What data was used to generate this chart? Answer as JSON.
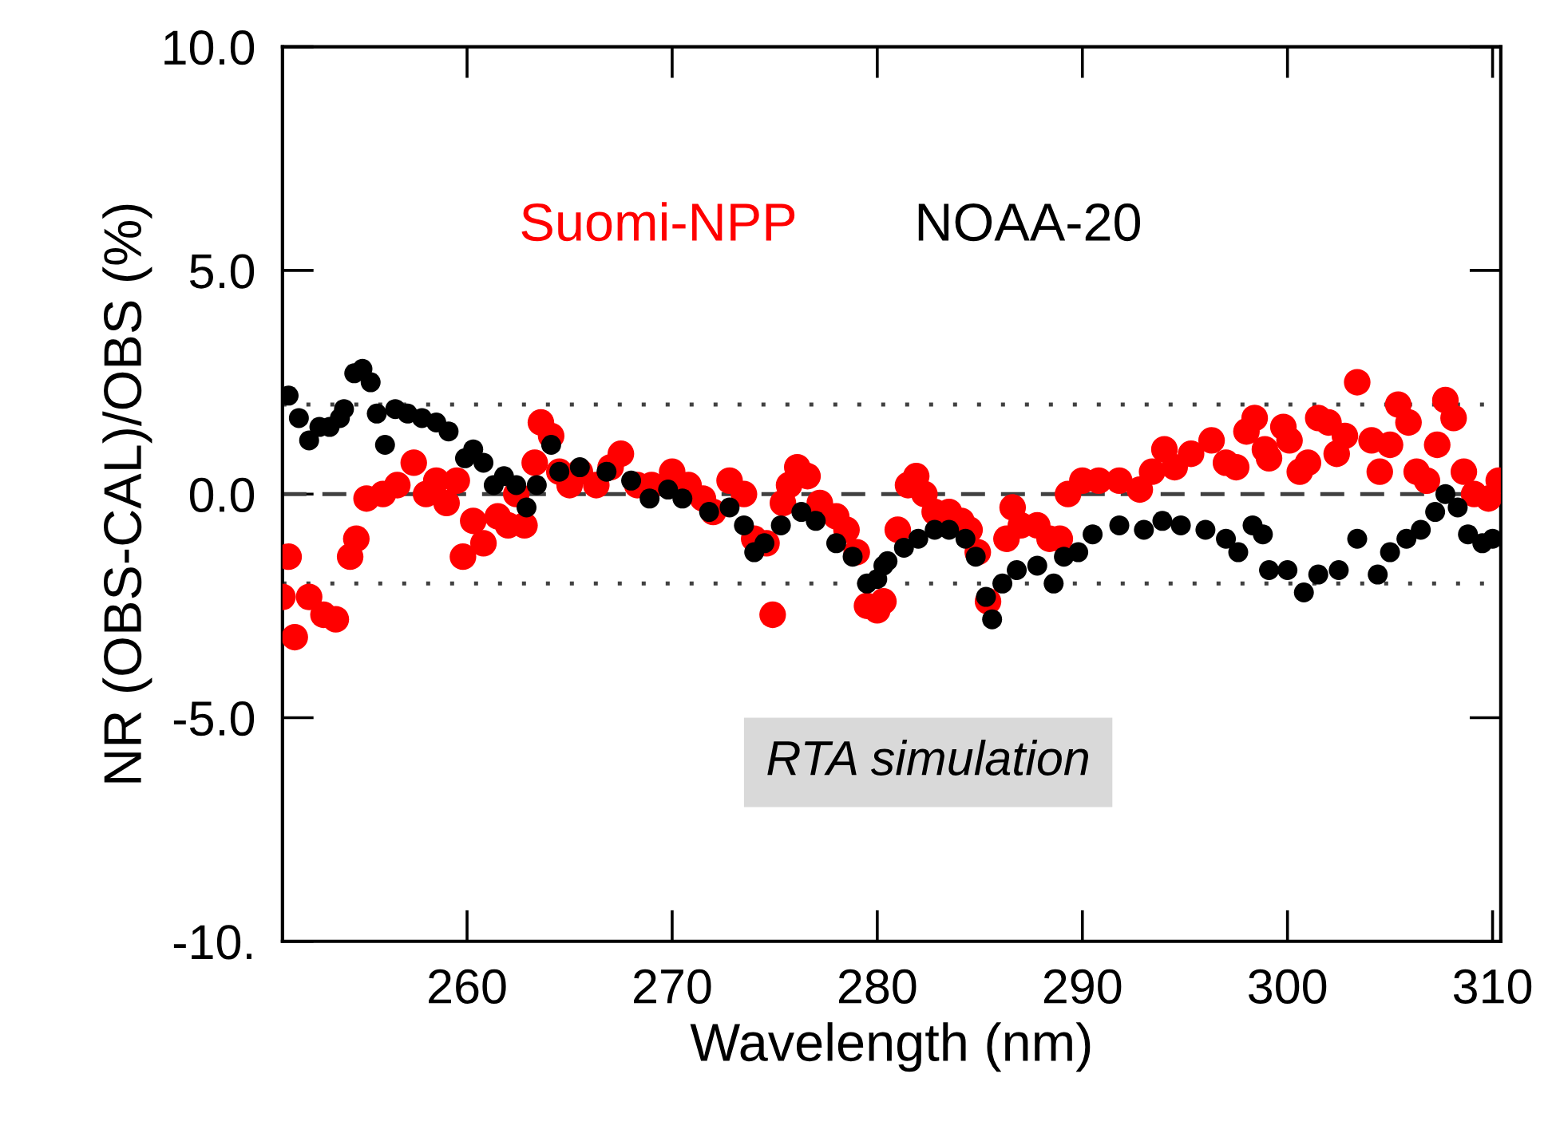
{
  "chart_data": {
    "type": "scatter",
    "xlabel": "Wavelength (nm)",
    "ylabel": "NR (OBS-CAL)/OBS (%)",
    "xlim": [
      251.0,
      310.4
    ],
    "ylim": [
      -10,
      10
    ],
    "xticks": [
      260,
      270,
      280,
      290,
      300,
      310
    ],
    "yticks": [
      {
        "value": -10,
        "label": "-10."
      },
      {
        "value": -5,
        "label": "-5.0"
      },
      {
        "value": 0,
        "label": "0.0"
      },
      {
        "value": 5,
        "label": "5.0"
      },
      {
        "value": 10,
        "label": "10.0"
      }
    ],
    "grid": false,
    "legend": "top",
    "marker": "circle",
    "series": [
      {
        "name": "Suomi-NPP",
        "color": "#ff0000",
        "x": [
          251.0,
          251.3,
          251.6,
          252.3,
          253.0,
          253.6,
          254.3,
          254.6,
          255.1,
          255.9,
          256.6,
          257.4,
          258.0,
          258.5,
          259.0,
          259.5,
          259.8,
          260.3,
          260.8,
          261.5,
          262.0,
          262.4,
          262.8,
          263.3,
          263.6,
          264.1,
          264.5,
          265.0,
          265.5,
          266.3,
          267.0,
          267.5,
          268.3,
          269.0,
          270.0,
          270.8,
          271.5,
          272.0,
          272.8,
          273.5,
          274.0,
          274.6,
          274.9,
          275.4,
          275.7,
          276.1,
          276.6,
          277.2,
          278.0,
          278.5,
          279.0,
          279.5,
          280.0,
          280.3,
          281.0,
          281.5,
          281.9,
          282.3,
          282.8,
          283.5,
          284.1,
          284.5,
          284.9,
          285.4,
          286.3,
          286.6,
          287.0,
          287.8,
          288.4,
          288.9,
          289.3,
          290.0,
          290.8,
          291.8,
          292.8,
          293.4,
          294.0,
          294.5,
          295.3,
          296.3,
          297.0,
          297.5,
          298.0,
          298.4,
          298.9,
          299.1,
          299.8,
          300.1,
          300.6,
          301.0,
          301.5,
          302.0,
          302.4,
          302.8,
          303.4,
          304.1,
          304.5,
          305.0,
          305.4,
          305.9,
          306.3,
          306.8,
          307.3,
          307.7,
          308.1,
          308.6,
          309.1,
          309.8,
          310.3
        ],
        "values": [
          -2.3,
          -1.4,
          -3.2,
          -2.3,
          -2.7,
          -2.8,
          -1.4,
          -1.0,
          -0.1,
          0.0,
          0.2,
          0.7,
          0.0,
          0.3,
          -0.2,
          0.3,
          -1.4,
          -0.6,
          -1.1,
          -0.5,
          -0.7,
          0.0,
          -0.7,
          0.7,
          1.6,
          1.3,
          0.5,
          0.2,
          0.5,
          0.2,
          0.6,
          0.9,
          0.2,
          0.2,
          0.5,
          0.2,
          -0.1,
          -0.4,
          0.3,
          0.0,
          -1.0,
          -1.1,
          -2.7,
          -0.2,
          0.2,
          0.6,
          0.4,
          -0.2,
          -0.5,
          -0.8,
          -1.3,
          -2.5,
          -2.6,
          -2.4,
          -0.8,
          0.2,
          0.4,
          0.0,
          -0.4,
          -0.4,
          -0.6,
          -0.8,
          -1.3,
          -2.4,
          -1.0,
          -0.3,
          -0.7,
          -0.7,
          -1.0,
          -1.0,
          0.0,
          0.3,
          0.3,
          0.3,
          0.1,
          0.5,
          1.0,
          0.6,
          0.9,
          1.2,
          0.7,
          0.6,
          1.4,
          1.7,
          1.0,
          0.8,
          1.5,
          1.2,
          0.5,
          0.7,
          1.7,
          1.6,
          0.9,
          1.3,
          2.5,
          1.2,
          0.5,
          1.1,
          2.0,
          1.6,
          0.5,
          0.3,
          1.1,
          2.1,
          1.7,
          0.5,
          0.0,
          -0.1,
          0.3
        ]
      },
      {
        "name": "NOAA-20",
        "color": "#000000",
        "x": [
          251.3,
          251.8,
          252.3,
          252.8,
          253.3,
          253.8,
          254.0,
          254.5,
          254.9,
          255.3,
          255.6,
          256.0,
          256.5,
          257.1,
          257.8,
          258.5,
          259.1,
          259.9,
          260.3,
          260.8,
          261.3,
          261.8,
          262.4,
          262.9,
          263.4,
          264.1,
          264.5,
          265.5,
          266.8,
          268.0,
          268.9,
          269.8,
          270.5,
          271.8,
          272.8,
          273.5,
          274.0,
          274.5,
          275.3,
          276.3,
          277.0,
          278.0,
          278.8,
          279.5,
          280.0,
          280.3,
          280.5,
          281.3,
          282.0,
          282.8,
          283.5,
          284.3,
          284.8,
          285.3,
          285.6,
          286.1,
          286.8,
          287.8,
          288.6,
          289.1,
          289.8,
          290.5,
          291.8,
          293.0,
          293.9,
          294.8,
          296.0,
          297.0,
          297.6,
          298.3,
          298.8,
          299.1,
          300.0,
          300.8,
          301.5,
          302.5,
          303.4,
          304.4,
          305.0,
          305.8,
          306.5,
          307.2,
          307.7,
          308.3,
          308.8,
          309.5,
          310.0
        ],
        "values": [
          2.2,
          1.7,
          1.2,
          1.5,
          1.5,
          1.7,
          1.9,
          2.7,
          2.8,
          2.5,
          1.8,
          1.1,
          1.9,
          1.8,
          1.7,
          1.6,
          1.4,
          0.8,
          1.0,
          0.7,
          0.2,
          0.4,
          0.2,
          -0.3,
          0.2,
          1.1,
          0.5,
          0.6,
          0.5,
          0.3,
          -0.1,
          0.1,
          -0.1,
          -0.4,
          -0.3,
          -0.7,
          -1.3,
          -1.1,
          -0.7,
          -0.4,
          -0.6,
          -1.1,
          -1.4,
          -2.0,
          -1.9,
          -1.6,
          -1.5,
          -1.2,
          -1.0,
          -0.8,
          -0.8,
          -1.0,
          -1.4,
          -2.3,
          -2.8,
          -2.0,
          -1.7,
          -1.6,
          -2.0,
          -1.4,
          -1.3,
          -0.9,
          -0.7,
          -0.8,
          -0.6,
          -0.7,
          -0.8,
          -1.0,
          -1.3,
          -0.7,
          -0.9,
          -1.7,
          -1.7,
          -2.2,
          -1.8,
          -1.7,
          -1.0,
          -1.8,
          -1.3,
          -1.0,
          -0.8,
          -0.4,
          0.0,
          -0.3,
          -0.9,
          -1.1,
          -1.0
        ]
      }
    ],
    "ref_lines": [
      {
        "axis": "y",
        "value": 2.0,
        "line_style": "dotted",
        "color": "#404040"
      },
      {
        "axis": "y",
        "value": 0.0,
        "line_style": "dashed",
        "color": "#404040"
      },
      {
        "axis": "y",
        "value": -2.0,
        "line_style": "dotted",
        "color": "#404040"
      }
    ],
    "annotations": [
      "RTA simulation"
    ]
  }
}
